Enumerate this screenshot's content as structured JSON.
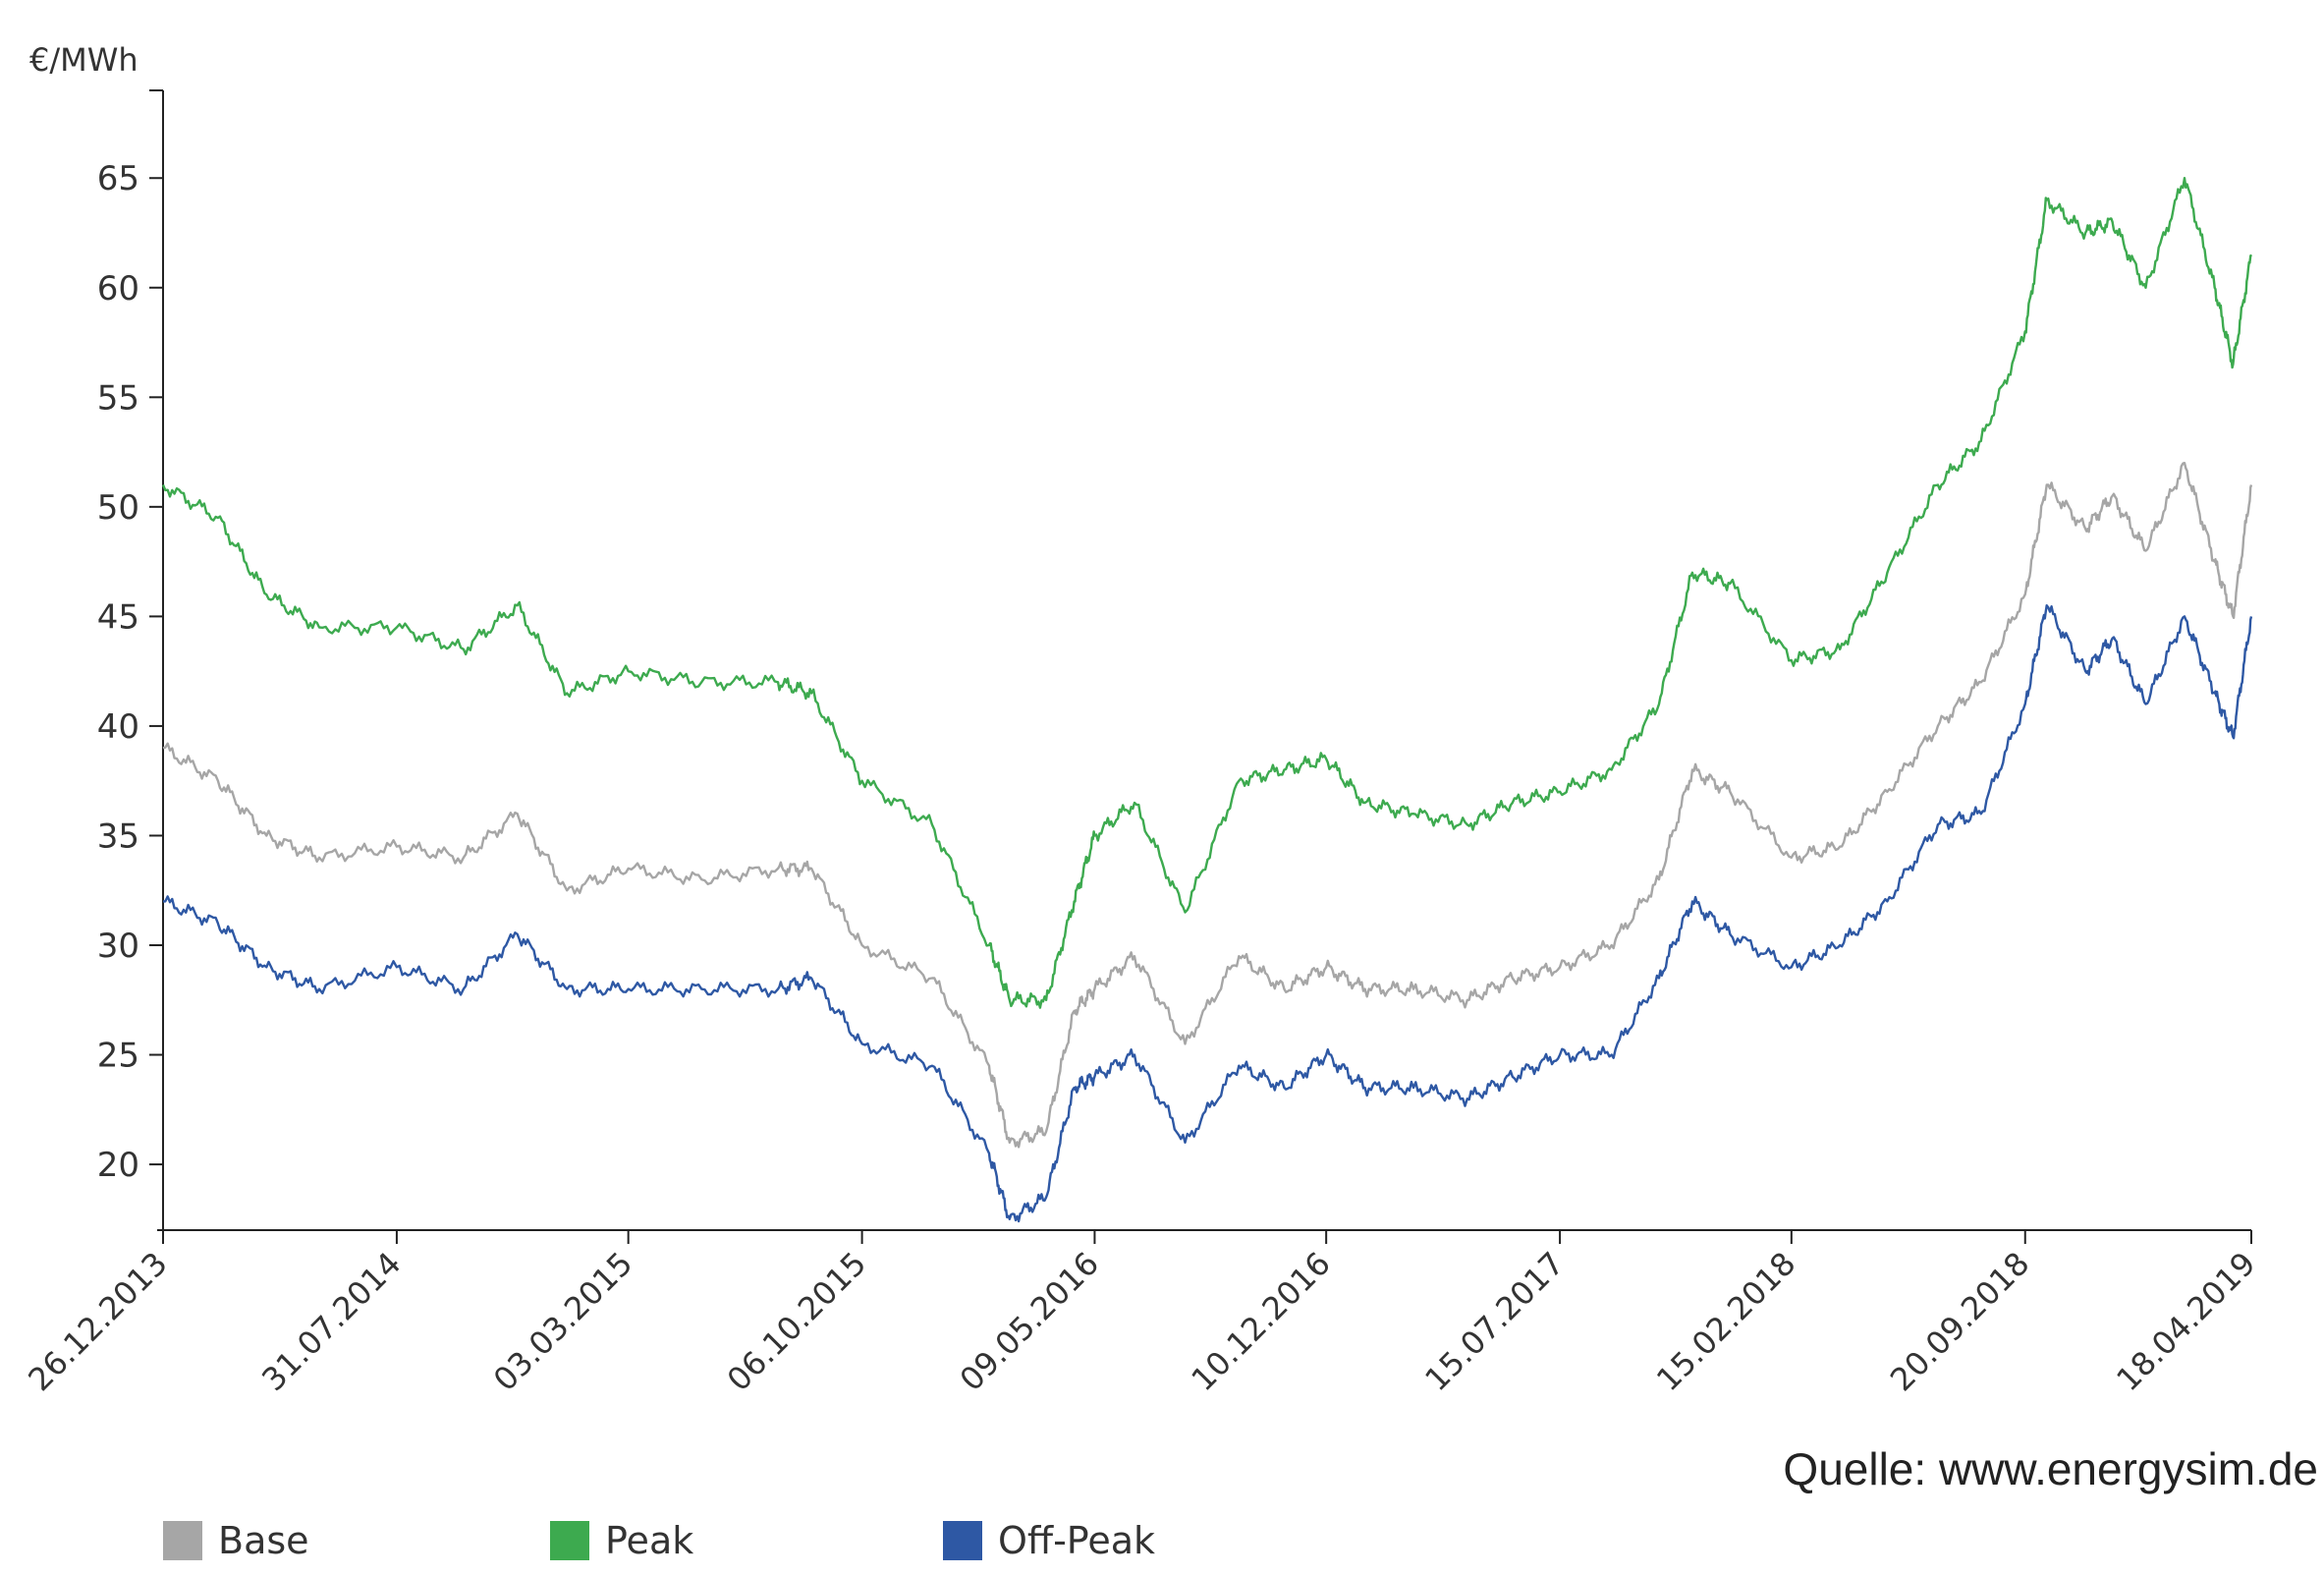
{
  "chart_data": {
    "type": "line",
    "ylabel": "€/MWh",
    "ylim": [
      17,
      69
    ],
    "yticks": [
      20,
      25,
      30,
      35,
      40,
      45,
      50,
      55,
      60,
      65
    ],
    "xlim": [
      "2013-12-26",
      "2019-04-18"
    ],
    "xticks": [
      "26.12.2013",
      "31.07.2014",
      "03.03.2015",
      "06.10.2015",
      "09.05.2016",
      "10.12.2016",
      "15.07.2017",
      "15.02.2018",
      "20.09.2018",
      "18.04.2019"
    ],
    "grid": false,
    "legend_position": "bottom",
    "x": [
      "2013-12-26",
      "2014-02-15",
      "2014-04-01",
      "2014-05-20",
      "2014-07-31",
      "2014-10-01",
      "2014-11-20",
      "2015-01-05",
      "2015-03-03",
      "2015-05-10",
      "2015-07-20",
      "2015-08-20",
      "2015-10-06",
      "2015-12-10",
      "2016-02-01",
      "2016-02-20",
      "2016-03-25",
      "2016-04-20",
      "2016-05-09",
      "2016-06-15",
      "2016-08-01",
      "2016-09-20",
      "2016-11-01",
      "2016-12-10",
      "2017-01-15",
      "2017-03-01",
      "2017-04-20",
      "2017-06-01",
      "2017-07-15",
      "2017-09-01",
      "2017-10-15",
      "2017-11-15",
      "2017-12-20",
      "2018-02-15",
      "2018-04-01",
      "2018-05-15",
      "2018-07-01",
      "2018-08-10",
      "2018-09-20",
      "2018-10-10",
      "2018-11-15",
      "2018-12-10",
      "2019-01-10",
      "2019-02-15",
      "2019-03-15",
      "2019-04-01",
      "2019-04-18"
    ],
    "series": [
      {
        "name": "Base",
        "color": "#a6a6a6",
        "values": [
          39.0,
          37.5,
          35.0,
          34.0,
          34.5,
          34.0,
          36.0,
          32.5,
          33.5,
          33.0,
          33.5,
          33.5,
          30.0,
          28.5,
          24.5,
          21.0,
          21.5,
          27.0,
          28.0,
          29.5,
          25.5,
          29.5,
          28.0,
          29.0,
          28.0,
          28.0,
          27.5,
          28.5,
          29.0,
          30.0,
          33.0,
          38.0,
          37.0,
          34.0,
          34.5,
          37.0,
          40.0,
          42.0,
          46.0,
          51.0,
          49.0,
          50.5,
          48.0,
          52.0,
          47.5,
          45.0,
          51.0
        ]
      },
      {
        "name": "Peak",
        "color": "#3daa4f",
        "values": [
          51.0,
          49.5,
          46.0,
          44.5,
          44.5,
          43.5,
          45.5,
          41.5,
          42.5,
          42.0,
          42.0,
          41.5,
          37.5,
          35.5,
          30.0,
          27.5,
          27.5,
          32.0,
          35.0,
          36.5,
          31.5,
          37.5,
          38.0,
          38.5,
          36.5,
          36.0,
          35.5,
          36.5,
          37.0,
          38.0,
          41.0,
          47.0,
          46.5,
          43.0,
          43.5,
          47.0,
          51.0,
          53.0,
          58.0,
          64.0,
          62.5,
          63.0,
          60.0,
          65.0,
          60.0,
          56.5,
          61.5
        ]
      },
      {
        "name": "Off-Peak",
        "color": "#2e58a4",
        "values": [
          32.0,
          31.0,
          29.0,
          28.0,
          29.0,
          28.0,
          30.5,
          28.0,
          28.0,
          28.0,
          28.0,
          28.5,
          25.5,
          24.5,
          20.5,
          17.5,
          18.5,
          23.5,
          24.0,
          25.0,
          21.0,
          24.5,
          23.5,
          25.0,
          23.5,
          23.5,
          23.0,
          24.0,
          25.0,
          25.0,
          28.5,
          32.0,
          30.5,
          29.0,
          30.0,
          32.0,
          35.5,
          36.0,
          41.0,
          45.5,
          42.5,
          44.0,
          41.0,
          45.0,
          41.5,
          39.5,
          45.0
        ]
      }
    ]
  },
  "source_text": "Quelle: www.energysim.de"
}
